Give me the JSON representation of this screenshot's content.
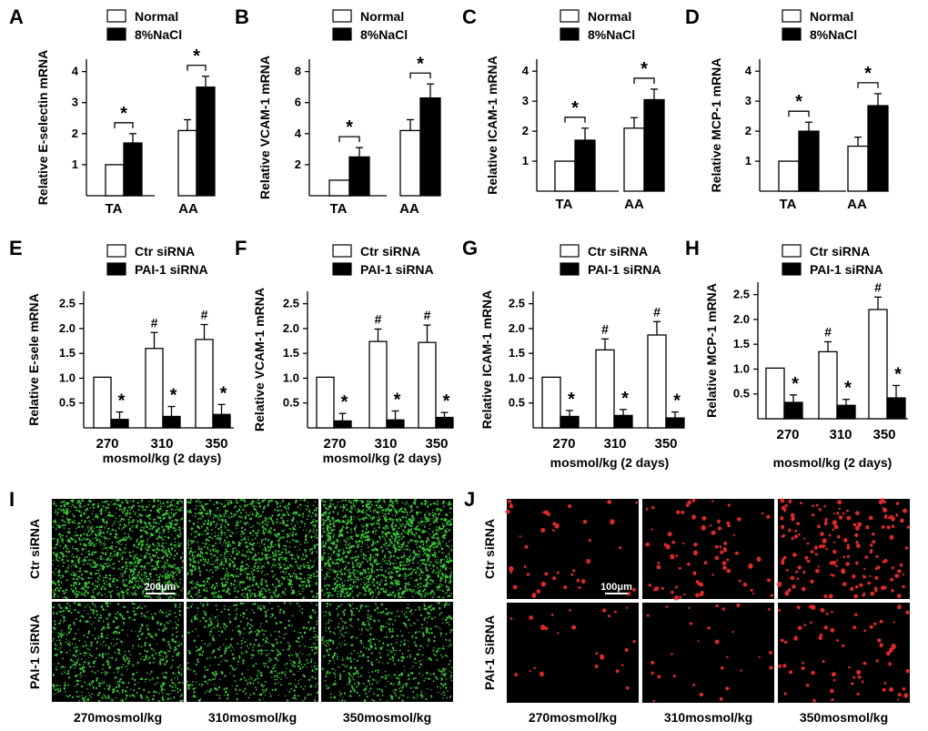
{
  "chart_data": [
    {
      "type": "bar",
      "panel": "A",
      "ylabel": "Relative E-selectin mRNA",
      "categories": [
        "TA",
        "AA"
      ],
      "ylim": [
        0,
        4.4
      ],
      "yticks": [
        "1",
        "2",
        "3",
        "4"
      ],
      "ytick_values": [
        1,
        2,
        3,
        4
      ],
      "series": [
        {
          "name": "Normal",
          "values": [
            1.0,
            2.1
          ],
          "errors": [
            0,
            0.35
          ]
        },
        {
          "name": "8%NaCl",
          "values": [
            1.7,
            3.5
          ],
          "errors": [
            0.3,
            0.35
          ]
        }
      ],
      "annotation_text": "*",
      "comparisons": [
        {
          "category": 0,
          "label": "*"
        },
        {
          "category": 1,
          "label": "*"
        }
      ],
      "xlabel": ""
    },
    {
      "type": "bar",
      "panel": "B",
      "ylabel": "Relative VCAM-1 mRNA",
      "categories": [
        "TA",
        "AA"
      ],
      "ylim": [
        0,
        8.8
      ],
      "yticks": [
        "2",
        "4",
        "6",
        "8"
      ],
      "ytick_values": [
        2,
        4,
        6,
        8
      ],
      "series": [
        {
          "name": "Normal",
          "values": [
            1.0,
            4.2
          ],
          "errors": [
            0,
            0.7
          ]
        },
        {
          "name": "8%NaCl",
          "values": [
            2.5,
            6.3
          ],
          "errors": [
            0.6,
            0.9
          ]
        }
      ],
      "annotation_text": "*",
      "comparisons": [
        {
          "category": 0,
          "label": "*"
        },
        {
          "category": 1,
          "label": "*"
        }
      ],
      "xlabel": ""
    },
    {
      "type": "bar",
      "panel": "C",
      "ylabel": "Relative ICAM-1 mRNA",
      "categories": [
        "TA",
        "AA"
      ],
      "ylim": [
        0,
        4.4
      ],
      "yticks": [
        "1",
        "2",
        "3",
        "4"
      ],
      "ytick_values": [
        1,
        2,
        3,
        4
      ],
      "series": [
        {
          "name": "Normal",
          "values": [
            1.0,
            2.1
          ],
          "errors": [
            0,
            0.35
          ]
        },
        {
          "name": "8%NaCl",
          "values": [
            1.7,
            3.05
          ],
          "errors": [
            0.4,
            0.35
          ]
        }
      ],
      "annotation_text": "*",
      "comparisons": [
        {
          "category": 0,
          "label": "*"
        },
        {
          "category": 1,
          "label": "*"
        }
      ],
      "xlabel": ""
    },
    {
      "type": "bar",
      "panel": "D",
      "ylabel": "Relative MCP-1 mRNA",
      "categories": [
        "TA",
        "AA"
      ],
      "ylim": [
        0,
        4.4
      ],
      "yticks": [
        "1",
        "2",
        "3",
        "4"
      ],
      "ytick_values": [
        1,
        2,
        3,
        4
      ],
      "series": [
        {
          "name": "Normal",
          "values": [
            1.0,
            1.5
          ],
          "errors": [
            0,
            0.3
          ]
        },
        {
          "name": "8%NaCl",
          "values": [
            2.0,
            2.85
          ],
          "errors": [
            0.3,
            0.4
          ]
        }
      ],
      "annotation_text": "*",
      "comparisons": [
        {
          "category": 0,
          "label": "*"
        },
        {
          "category": 1,
          "label": "*"
        }
      ],
      "xlabel": ""
    },
    {
      "type": "bar",
      "panel": "E",
      "ylabel": "Relative E-sele mRNA",
      "categories": [
        "270",
        "310",
        "350"
      ],
      "ylim": [
        0,
        2.75
      ],
      "yticks": [
        "0.5",
        "1.0",
        "1.5",
        "2.0",
        "2.5"
      ],
      "ytick_values": [
        0.5,
        1.0,
        1.5,
        2.0,
        2.5
      ],
      "series": [
        {
          "name": "Ctr siRNA",
          "values": [
            1.02,
            1.6,
            1.78
          ],
          "errors": [
            0,
            0.32,
            0.3
          ],
          "marks": [
            "",
            "#",
            "#"
          ]
        },
        {
          "name": "PAI-1 siRNA",
          "values": [
            0.17,
            0.23,
            0.27
          ],
          "errors": [
            0.15,
            0.2,
            0.2
          ],
          "marks": [
            "*",
            "*",
            "*"
          ]
        }
      ],
      "xlabel": "mosmol/kg (2 days)"
    },
    {
      "type": "bar",
      "panel": "F",
      "ylabel": "Relative VCAM-1 mRNA",
      "categories": [
        "270",
        "310",
        "350"
      ],
      "ylim": [
        0,
        2.75
      ],
      "yticks": [
        "0.5",
        "1.0",
        "1.5",
        "2.0",
        "2.5"
      ],
      "ytick_values": [
        0.5,
        1.0,
        1.5,
        2.0,
        2.5
      ],
      "series": [
        {
          "name": "Ctr siRNA",
          "values": [
            1.02,
            1.74,
            1.72
          ],
          "errors": [
            0,
            0.25,
            0.35
          ],
          "marks": [
            "",
            "#",
            "#"
          ]
        },
        {
          "name": "PAI-1 siRNA",
          "values": [
            0.14,
            0.16,
            0.21
          ],
          "errors": [
            0.15,
            0.18,
            0.1
          ],
          "marks": [
            "*",
            "*",
            "*"
          ]
        }
      ],
      "xlabel": "mosmol/kg (2 days)"
    },
    {
      "type": "bar",
      "panel": "G",
      "ylabel": "Relative ICAM-1 mRNA",
      "categories": [
        "270",
        "310",
        "350"
      ],
      "ylim": [
        0,
        2.75
      ],
      "yticks": [
        "0.5",
        "1.0",
        "1.5",
        "2.0",
        "2.5"
      ],
      "ytick_values": [
        0.5,
        1.0,
        1.5,
        2.0,
        2.5
      ],
      "series": [
        {
          "name": "Ctr siRNA",
          "values": [
            1.02,
            1.57,
            1.87
          ],
          "errors": [
            0,
            0.22,
            0.27
          ],
          "marks": [
            "",
            "#",
            "#"
          ]
        },
        {
          "name": "PAI-1 siRNA",
          "values": [
            0.23,
            0.25,
            0.2
          ],
          "errors": [
            0.12,
            0.12,
            0.12
          ],
          "marks": [
            "*",
            "*",
            "*"
          ]
        }
      ],
      "xlabel": "mosmol/kg (2 days)"
    },
    {
      "type": "bar",
      "panel": "H",
      "ylabel": "Relative MCP-1 mRNA",
      "categories": [
        "270",
        "310",
        "350"
      ],
      "ylim": [
        0,
        2.75
      ],
      "yticks": [
        "0.5",
        "1.0",
        "1.5",
        "2.0",
        "2.5"
      ],
      "ytick_values": [
        0.5,
        1.0,
        1.5,
        2.0,
        2.5
      ],
      "series": [
        {
          "name": "Ctr siRNA",
          "values": [
            1.02,
            1.35,
            2.2
          ],
          "errors": [
            0,
            0.2,
            0.25
          ],
          "marks": [
            "",
            "#",
            "#"
          ]
        },
        {
          "name": "PAI-1 siRNA",
          "values": [
            0.33,
            0.27,
            0.42
          ],
          "errors": [
            0.15,
            0.12,
            0.25
          ],
          "marks": [
            "*",
            "*",
            "*"
          ]
        }
      ],
      "xlabel": "mosmol/kg (2 days)"
    }
  ],
  "images": [
    {
      "panel": "I",
      "color": "#3cdc3c",
      "rows": [
        "Ctr siRNA",
        "PAI-1 SiRNA"
      ],
      "columns": [
        "270mosmol/kg",
        "310mosmol/kg",
        "350mosmol/kg"
      ],
      "scale_bar": "200μm"
    },
    {
      "panel": "J",
      "color": "#ff2a2a",
      "rows": [
        "Ctr siRNA",
        "PAI-1 SiRNA"
      ],
      "columns": [
        "270mosmol/kg",
        "310mosmol/kg",
        "350mosmol/kg"
      ],
      "scale_bar": "100μm"
    }
  ]
}
